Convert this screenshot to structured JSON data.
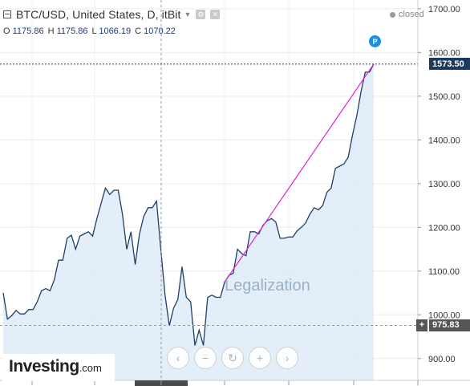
{
  "header": {
    "title": "BTC/USD, United States, D, itBit",
    "status": "closed"
  },
  "ohlc": [
    {
      "label": "O",
      "value": "1175.86"
    },
    {
      "label": "H",
      "value": "1175.86"
    },
    {
      "label": "L",
      "value": "1066.19"
    },
    {
      "label": "C",
      "value": "1070.22"
    }
  ],
  "annotation": {
    "text": "Legalization",
    "badge": "P"
  },
  "price_tags": {
    "last_price": "1573.50",
    "crosshair_price": "975.83",
    "crosshair_plus": "+"
  },
  "logo": {
    "main": "Investing",
    "domain": ".com"
  },
  "nav": {
    "left": "‹",
    "zoom_out": "−",
    "reset": "↻",
    "zoom_in": "+",
    "right": "›"
  },
  "colors": {
    "line": "#1f3f66",
    "area_fill": "#dbe8f6",
    "trend_line": "#e020e0",
    "last_price_tag": "#1c3a5e",
    "crosshair_tag": "#555555",
    "badge": "#1e8fe0"
  },
  "chart_data": {
    "type": "area",
    "ylim": [
      850,
      1720
    ],
    "y_ticks": [
      900,
      1000,
      1100,
      1200,
      1300,
      1400,
      1500,
      1600,
      1700
    ],
    "y_tick_labels": [
      "900.00",
      "1000.00",
      "1100.00",
      "1200.00",
      "1300.00",
      "1400.00",
      "1500.00",
      "1600.00",
      "1700.00"
    ],
    "series": [
      {
        "values": [
          1050,
          990,
          998,
          1010,
          1002,
          1002,
          1012,
          1012,
          1030,
          1055,
          1060,
          1055,
          1080,
          1125,
          1125,
          1175,
          1182,
          1150,
          1180,
          1185,
          1190,
          1180,
          1220,
          1255,
          1290,
          1275,
          1285,
          1285,
          1230,
          1150,
          1190,
          1115,
          1185,
          1225,
          1245,
          1245,
          1260,
          1150,
          1045,
          975,
          1015,
          1035,
          1110,
          1040,
          1030,
          930,
          965,
          930,
          1040,
          1045,
          1040,
          1040,
          1075,
          1090,
          1095,
          1150,
          1140,
          1135,
          1190,
          1190,
          1185,
          1205,
          1215,
          1220,
          1212,
          1175,
          1175,
          1178,
          1178,
          1192,
          1200,
          1210,
          1230,
          1245,
          1240,
          1250,
          1280,
          1290,
          1335,
          1340,
          1345,
          1360,
          1410,
          1455,
          1510,
          1555,
          1555,
          1573.5
        ]
      }
    ],
    "trend_line": {
      "from_index": 52,
      "to_index": 87,
      "from_value": 1075,
      "to_value": 1573.5
    },
    "last_price": 1573.5,
    "crosshair_price": 975.83
  }
}
